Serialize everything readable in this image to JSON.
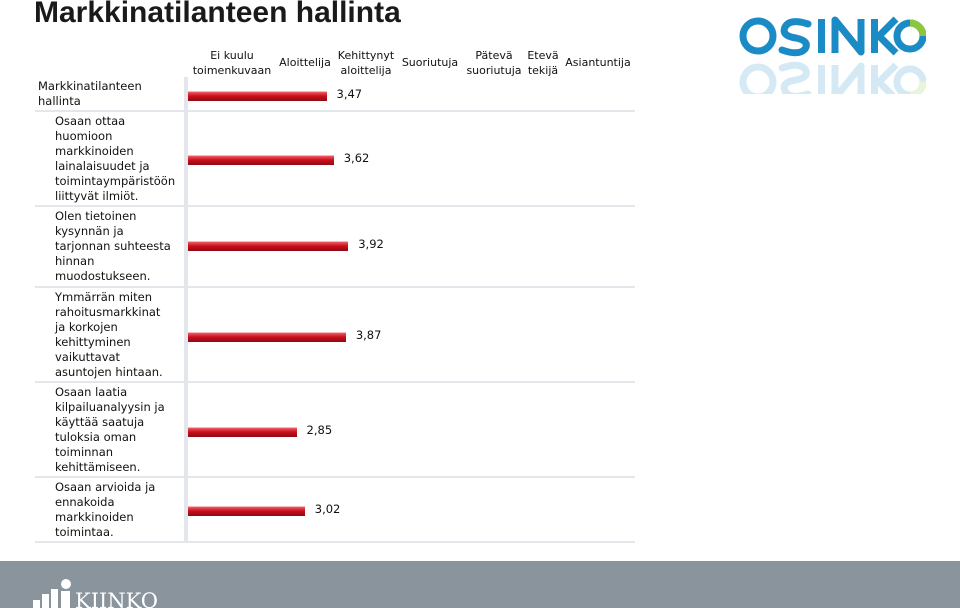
{
  "slide": {
    "title": "Markkinatilanteen hallinta"
  },
  "logos": {
    "osinko": "OSINKO",
    "kiinko": "KIINKO"
  },
  "colors": {
    "bar": "#c8101d",
    "logo_blue": "#1b8bc6",
    "logo_green": "#8cc63f",
    "footer": "#8a949d",
    "grid": "#e3e7ec"
  },
  "chart_data": {
    "type": "bar",
    "orientation": "horizontal",
    "title": "",
    "xlabel": "",
    "ylabel": "",
    "xlim": [
      1,
      7
    ],
    "scale_labels": [
      [
        "Ei kuulu",
        "toimenkuvaan"
      ],
      [
        "Aloittelija"
      ],
      [
        "Kehittynyt",
        "aloittelija"
      ],
      [
        "Suoriutuja"
      ],
      [
        "Pätevä",
        "suoriutuja"
      ],
      [
        "Etevä",
        "tekijä"
      ],
      [
        "Asiantuntija"
      ]
    ],
    "categories": [
      [
        "Markkinatilanteen",
        "hallinta"
      ],
      [
        "Osaan ottaa",
        "huomioon",
        "markkinoiden",
        "lainalaisuudet ja",
        "toimintaympäristöön",
        "liittyvät ilmiöt."
      ],
      [
        "Olen tietoinen",
        "kysynnän ja",
        "tarjonnan suhteesta",
        "hinnan",
        "muodostukseen."
      ],
      [
        "Ymmärrän miten",
        "rahoitusmarkkinat",
        "ja korkojen",
        "kehittyminen",
        "vaikuttavat",
        "asuntojen hintaan."
      ],
      [
        "Osaan laatia",
        "kilpailuanalyysin ja",
        "käyttää saatuja",
        "tuloksia oman",
        "toiminnan",
        "kehittämiseen."
      ],
      [
        "Osaan arvioida ja",
        "ennakoida",
        "markkinoiden",
        "toimintaa."
      ]
    ],
    "values": [
      3.47,
      3.62,
      3.92,
      3.87,
      2.85,
      3.02
    ],
    "value_labels": [
      "3,47",
      "3,62",
      "3,92",
      "3,87",
      "2,85",
      "3,02"
    ],
    "grid": false,
    "legend": "none"
  }
}
